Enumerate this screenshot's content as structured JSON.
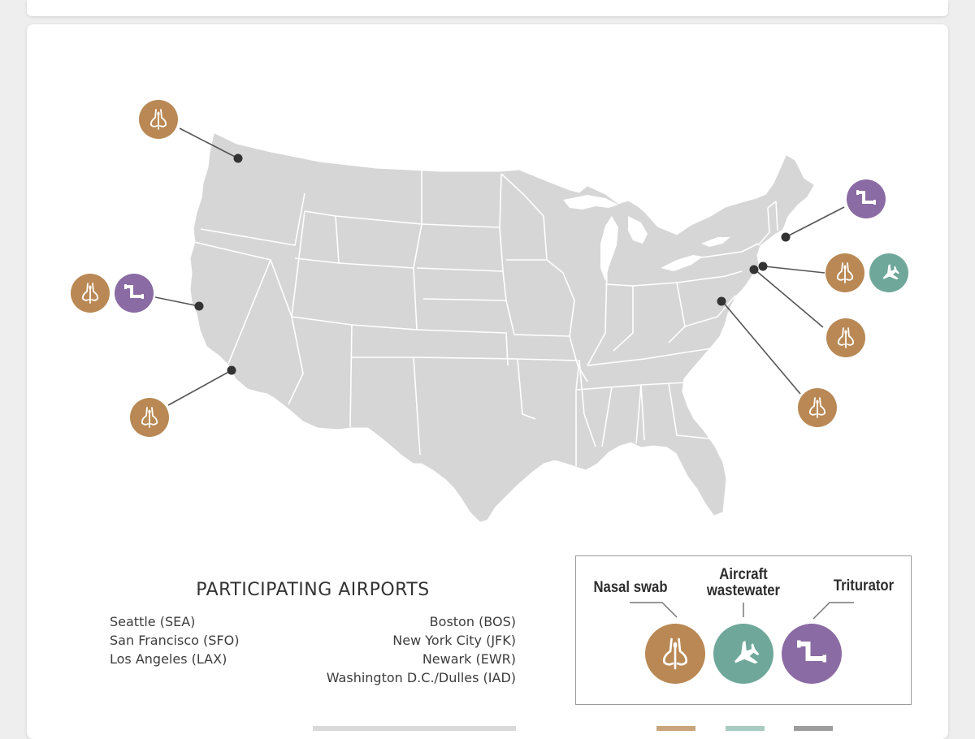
{
  "airports_title": "PARTICIPATING AIRPORTS",
  "airports_west": [
    "Seattle (SEA)",
    "San Francisco (SFO)",
    "Los Angeles (LAX)"
  ],
  "airports_east": [
    "Boston (BOS)",
    "New York City (JFK)",
    "Newark (EWR)",
    "Washington D.C./Dulles (IAD)"
  ],
  "legend": {
    "nasal_swab": "Nasal swab",
    "aircraft_wastewater_line1": "Aircraft",
    "aircraft_wastewater_line2": "wastewater",
    "triturator": "Triturator"
  },
  "colors": {
    "nasal_swab": "#b98854",
    "aircraft_wastewater": "#6fa89a",
    "triturator": "#8a6ba3",
    "land": "#d6d6d6",
    "state_border": "#ffffff",
    "leader_line": "#555555",
    "dot": "#333333"
  },
  "icons": {
    "nasal_swab": "nose-swab-icon",
    "aircraft_wastewater": "airplane-icon",
    "triturator": "pipe-icon"
  }
}
